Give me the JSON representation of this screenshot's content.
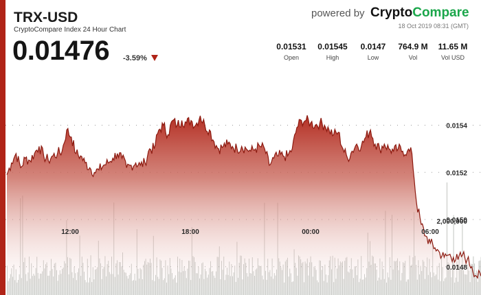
{
  "header": {
    "pair": "TRX-USD",
    "subtitle": "CryptoCompare Index 24 Hour Chart",
    "price": "0.01476",
    "change": "-3.59%",
    "powered_by": "powered by",
    "brand_left": "Crypto",
    "brand_right": "Compare",
    "timestamp": "18 Oct 2019 08:31 (GMT)"
  },
  "stats": [
    {
      "value": "0.01531",
      "label": "Open"
    },
    {
      "value": "0.01545",
      "label": "High"
    },
    {
      "value": "0.0147",
      "label": "Low"
    },
    {
      "value": "764.9 M",
      "label": "Vol"
    },
    {
      "value": "11.65 M",
      "label": "Vol USD"
    }
  ],
  "colors": {
    "accent": "#b02418",
    "brand_green": "#1aa64a",
    "area_top": "#b02418",
    "volume": "#8f938d"
  },
  "chart_data": {
    "type": "area",
    "x_ticks": [
      "12:00",
      "18:00",
      "00:00",
      "06:00"
    ],
    "y_ticks": [
      "0.0154",
      "0.0152",
      "0.0150",
      "0.0148"
    ],
    "volume_tick": "2,000,000",
    "ylim": [
      0.01468,
      0.01564
    ],
    "grid": true,
    "series": [
      {
        "values": [
          0.01519,
          0.01524,
          0.01528,
          0.01522,
          0.01526,
          0.01525,
          0.01528,
          0.01531,
          0.01527,
          0.01525,
          0.01527,
          0.01528,
          0.01529,
          0.01538,
          0.01535,
          0.01528,
          0.01527,
          0.01524,
          0.01522,
          0.0152,
          0.01521,
          0.01523,
          0.01524,
          0.01526,
          0.01528,
          0.01526,
          0.01522,
          0.01523,
          0.01524,
          0.01523,
          0.01524,
          0.0153,
          0.0153,
          0.01538,
          0.0154,
          0.01536,
          0.01542,
          0.0154,
          0.01542,
          0.01541,
          0.01542,
          0.0154,
          0.01544,
          0.0154,
          0.01538,
          0.01533,
          0.0153,
          0.01531,
          0.01532,
          0.01531,
          0.0153,
          0.01531,
          0.0153,
          0.01529,
          0.0153,
          0.01531,
          0.0153,
          0.01523,
          0.01526,
          0.01527,
          0.01527,
          0.01527,
          0.0153,
          0.01539,
          0.01542,
          0.01542,
          0.01541,
          0.0154,
          0.01541,
          0.0154,
          0.01538,
          0.01536,
          0.01537,
          0.0153,
          0.01526,
          0.01529,
          0.01532,
          0.01531,
          0.01535,
          0.01538,
          0.01532,
          0.0153,
          0.01532,
          0.0153,
          0.01529,
          0.0153,
          0.01529,
          0.01529,
          0.01528,
          0.01507,
          0.01498,
          0.01493,
          0.0149,
          0.01488,
          0.01486,
          0.01484,
          0.01485,
          0.01484,
          0.01483,
          0.01485,
          0.01483,
          0.0148,
          0.01476,
          0.01476
        ]
      }
    ]
  }
}
